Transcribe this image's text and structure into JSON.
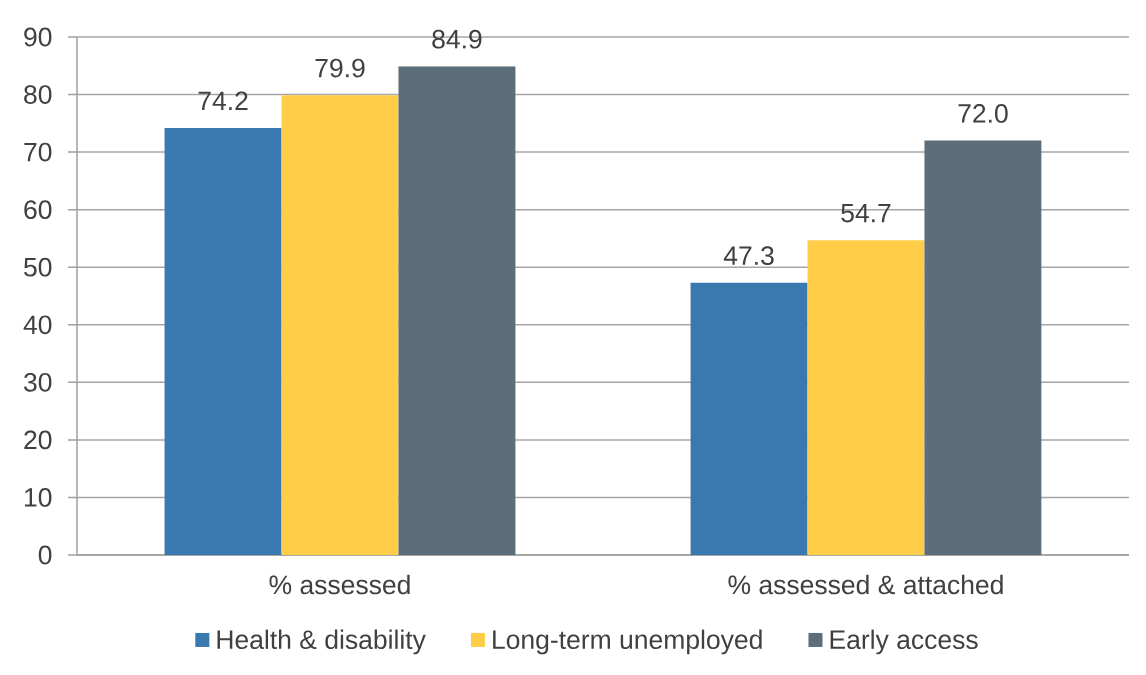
{
  "chart_data": {
    "type": "bar",
    "categories": [
      "% assessed",
      "% assessed & attached"
    ],
    "series": [
      {
        "name": "Health & disability",
        "color": "#3a78b0",
        "values": [
          74.2,
          47.3
        ],
        "value_labels": [
          "74.2",
          "47.3"
        ]
      },
      {
        "name": "Long-term unemployed",
        "color": "#ffcd47",
        "values": [
          79.9,
          54.7
        ],
        "value_labels": [
          "79.9",
          "54.7"
        ]
      },
      {
        "name": "Early access",
        "color": "#5b6e7a",
        "values": [
          84.9,
          72.0
        ],
        "value_labels": [
          "84.9",
          "72.0"
        ]
      }
    ],
    "ylim": [
      0,
      90
    ],
    "yticks": [
      0,
      10,
      20,
      30,
      40,
      50,
      60,
      70,
      80,
      90
    ],
    "grid": "y",
    "legend": "bottom"
  }
}
